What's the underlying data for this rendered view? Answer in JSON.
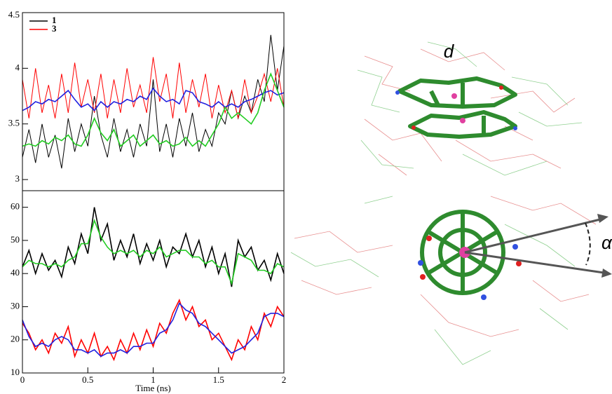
{
  "chart_data": [
    {
      "type": "line",
      "legend": "upper left",
      "x": [
        0,
        0.05,
        0.1,
        0.15,
        0.2,
        0.25,
        0.3,
        0.35,
        0.4,
        0.45,
        0.5,
        0.55,
        0.6,
        0.65,
        0.7,
        0.75,
        0.8,
        0.85,
        0.9,
        0.95,
        1,
        1.05,
        1.1,
        1.15,
        1.2,
        1.25,
        1.3,
        1.35,
        1.4,
        1.45,
        1.5,
        1.55,
        1.6,
        1.65,
        1.7,
        1.75,
        1.8,
        1.85,
        1.9,
        1.95,
        2
      ],
      "xlim": [
        0,
        2
      ],
      "ylim": [
        2.9,
        4.5
      ],
      "yticks": [
        3,
        3.5,
        4,
        4.5
      ],
      "series": [
        {
          "name": "1",
          "color": "#000000",
          "values": [
            3.2,
            3.45,
            3.15,
            3.5,
            3.2,
            3.4,
            3.1,
            3.55,
            3.25,
            3.5,
            3.3,
            3.75,
            3.4,
            3.2,
            3.55,
            3.25,
            3.45,
            3.2,
            3.5,
            3.3,
            3.9,
            3.25,
            3.5,
            3.2,
            3.55,
            3.3,
            3.6,
            3.25,
            3.45,
            3.3,
            3.6,
            3.5,
            3.8,
            3.55,
            3.75,
            3.6,
            3.9,
            3.7,
            4.3,
            3.8,
            4.2
          ]
        },
        {
          "name": "3",
          "color": "#ff0000",
          "values": [
            3.9,
            3.55,
            4.0,
            3.6,
            3.85,
            3.55,
            3.95,
            3.6,
            4.05,
            3.65,
            3.9,
            3.6,
            3.95,
            3.55,
            3.9,
            3.6,
            4.0,
            3.65,
            3.85,
            3.6,
            4.1,
            3.7,
            3.95,
            3.55,
            4.05,
            3.6,
            3.9,
            3.65,
            3.95,
            3.55,
            3.85,
            3.6,
            3.8,
            3.55,
            3.9,
            3.6,
            3.75,
            3.95,
            3.7,
            4.0,
            3.65
          ]
        },
        {
          "color": "#2020e0",
          "values": [
            3.62,
            3.65,
            3.7,
            3.68,
            3.72,
            3.7,
            3.75,
            3.8,
            3.72,
            3.65,
            3.68,
            3.62,
            3.7,
            3.65,
            3.7,
            3.68,
            3.72,
            3.7,
            3.75,
            3.72,
            3.82,
            3.75,
            3.7,
            3.72,
            3.68,
            3.8,
            3.78,
            3.7,
            3.68,
            3.65,
            3.7,
            3.65,
            3.68,
            3.65,
            3.7,
            3.72,
            3.75,
            3.78,
            3.8,
            3.76,
            3.78
          ]
        },
        {
          "color": "#22cc22",
          "values": [
            3.3,
            3.32,
            3.3,
            3.35,
            3.32,
            3.38,
            3.35,
            3.4,
            3.32,
            3.3,
            3.4,
            3.55,
            3.42,
            3.35,
            3.45,
            3.3,
            3.35,
            3.4,
            3.3,
            3.35,
            3.4,
            3.32,
            3.35,
            3.3,
            3.32,
            3.38,
            3.3,
            3.35,
            3.3,
            3.4,
            3.5,
            3.65,
            3.55,
            3.6,
            3.55,
            3.5,
            3.6,
            3.8,
            3.95,
            3.8,
            3.65
          ]
        }
      ]
    },
    {
      "type": "line",
      "xlabel": "Time (ns)",
      "x": [
        0,
        0.05,
        0.1,
        0.15,
        0.2,
        0.25,
        0.3,
        0.35,
        0.4,
        0.45,
        0.5,
        0.55,
        0.6,
        0.65,
        0.7,
        0.75,
        0.8,
        0.85,
        0.9,
        0.95,
        1,
        1.05,
        1.1,
        1.15,
        1.2,
        1.25,
        1.3,
        1.35,
        1.4,
        1.45,
        1.5,
        1.55,
        1.6,
        1.65,
        1.7,
        1.75,
        1.8,
        1.85,
        1.9,
        1.95,
        2
      ],
      "xlim": [
        0,
        2
      ],
      "xticks": [
        0,
        0.5,
        1,
        1.5,
        2
      ],
      "ylim": [
        10,
        65
      ],
      "yticks": [
        10,
        20,
        30,
        40,
        50,
        60
      ],
      "series": [
        {
          "color": "#000000",
          "values": [
            42,
            47,
            40,
            46,
            41,
            44,
            39,
            48,
            43,
            52,
            46,
            60,
            50,
            55,
            44,
            50,
            45,
            52,
            43,
            49,
            44,
            50,
            42,
            48,
            46,
            52,
            45,
            50,
            42,
            48,
            40,
            46,
            36,
            50,
            45,
            48,
            41,
            44,
            38,
            46,
            40
          ]
        },
        {
          "color": "#ff0000",
          "values": [
            25,
            22,
            17,
            20,
            16,
            22,
            19,
            24,
            15,
            20,
            16,
            22,
            15,
            18,
            14,
            20,
            16,
            22,
            17,
            23,
            18,
            25,
            22,
            28,
            32,
            26,
            30,
            24,
            26,
            20,
            22,
            18,
            14,
            20,
            17,
            24,
            20,
            28,
            24,
            30,
            27
          ]
        },
        {
          "color": "#22cc22",
          "values": [
            42,
            44,
            43,
            43,
            42,
            43,
            42,
            44,
            45,
            49,
            49,
            56,
            51,
            48,
            46,
            47,
            46,
            47,
            45,
            47,
            46,
            48,
            45,
            46,
            47,
            47,
            45,
            45,
            43,
            44,
            42,
            42,
            37,
            46,
            45,
            44,
            41,
            41,
            40,
            43,
            42
          ]
        },
        {
          "color": "#2020e0",
          "values": [
            26,
            21,
            18,
            19,
            18,
            20,
            21,
            20,
            17,
            17,
            16,
            17,
            15,
            16,
            16,
            17,
            16,
            18,
            18,
            19,
            19,
            22,
            23,
            26,
            31,
            29,
            28,
            25,
            24,
            22,
            20,
            18,
            16,
            17,
            18,
            20,
            22,
            27,
            28,
            28,
            27
          ]
        }
      ]
    }
  ],
  "molecule_labels": [
    "d",
    "α"
  ]
}
